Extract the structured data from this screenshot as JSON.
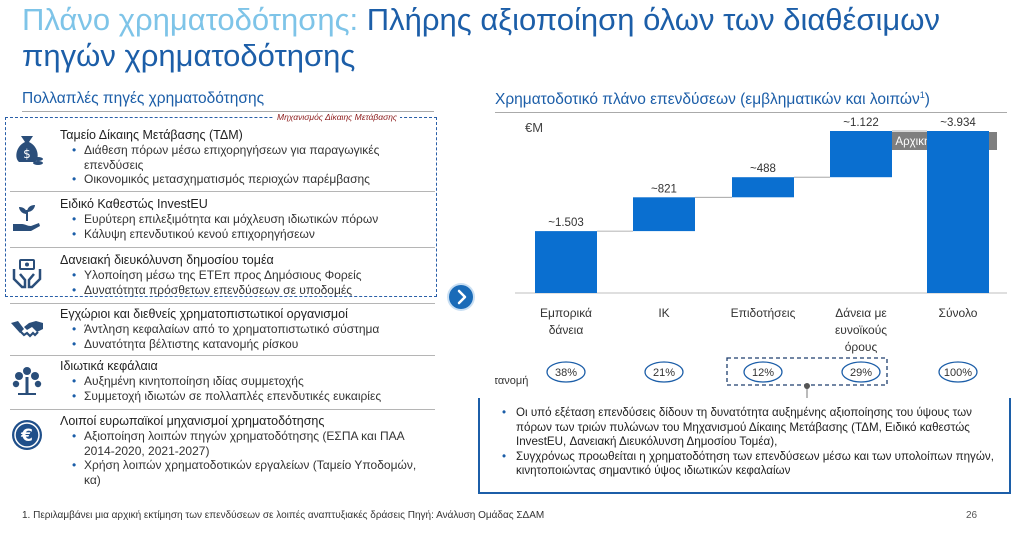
{
  "header": {
    "title_accent": "Πλάνο χρηματοδότησης:",
    "title_rest": " Πλήρης αξιοποίηση όλων των διαθέσιμων πηγών χρηματοδότησης"
  },
  "left": {
    "heading": "Πολλαπλές πηγές χρηματοδότησης",
    "mechanism_label": "Μηχανισμός Δίκαιης Μετάβασης",
    "items": [
      {
        "icon": "money-bag-icon",
        "title": "Ταμείο Δίκαιης Μετάβασης (ΤΔΜ)",
        "bullets": [
          "Διάθεση πόρων μέσω επιχορηγήσεων για παραγωγικές επενδύσεις",
          "Οικονομικός μετασχηματισμός περιοχών παρέμβασης"
        ]
      },
      {
        "icon": "hand-plant-icon",
        "title": "Ειδικό Καθεστώς InvestEU",
        "bullets": [
          "Ευρύτερη επιλεξιμότητα και μόχλευση ιδιωτικών πόρων",
          "Κάλυψη επενδυτικού κενού επιχορηγήσεων"
        ]
      },
      {
        "icon": "hands-money-icon",
        "title": "Δανειακή διευκόλυνση δημοσίου τομέα",
        "bullets": [
          "Υλοποίηση μέσω της ΕΤΕπ προς Δημόσιους Φορείς",
          "Δυνατότητα πρόσθετων επενδύσεων σε υποδομές"
        ]
      },
      {
        "icon": "handshake-icon",
        "title": "Εγχώριοι και διεθνείς χρηματοπιστωτικοί οργανισμοί",
        "bullets": [
          "Άντληση κεφαλαίων από το χρηματοπιστωτικό σύστημα",
          "Δυνατότητα βέλτιστης κατανομής ρίσκου"
        ]
      },
      {
        "icon": "tree-icon",
        "title": "Ιδιωτικά κεφάλαια",
        "bullets": [
          "Αυξημένη κινητοποίηση ιδίας συμμετοχής",
          "Συμμετοχή ιδιωτών σε πολλαπλές επενδυτικές ευκαιρίες"
        ]
      },
      {
        "icon": "euro-icon",
        "title": "Λοιποί ευρωπαϊκοί μηχανισμοί χρηματοδότησης",
        "bullets": [
          "Αξιοποίηση λοιπών πηγών χρηματοδότησης (ΕΣΠΑ και ΠΑΑ 2014-2020, 2021-2027)",
          "Χρήση λοιπών χρηματοδοτικών εργαλείων (Ταμείο Υποδομών, κα)"
        ]
      }
    ]
  },
  "right": {
    "heading": "Χρηματοδοτικό πλάνο επενδύσεων (εμβληματικών και λοιπών",
    "heading_sup": "1",
    "heading_end": ")"
  },
  "chart_data": {
    "type": "bar",
    "subtype": "waterfall",
    "unit": "€M",
    "tag": "Αρχική Εκτίμηση",
    "categories": [
      "Εμπορικά δάνεια",
      "ΙΚ",
      "Επιδοτήσεις",
      "Δάνεια με ευνοϊκούς όρους",
      "Σύνολο"
    ],
    "values": [
      1503,
      821,
      488,
      1122,
      3934
    ],
    "value_labels": [
      "~1.503",
      "~821",
      "~488",
      "~1.122",
      "~3.934"
    ],
    "allocation_label": "% κατανομή",
    "allocation": [
      "38%",
      "21%",
      "12%",
      "29%",
      "100%"
    ],
    "highlighted": [
      "Επιδοτήσεις",
      "Δάνεια με ευνοϊκούς όρους"
    ],
    "colors": {
      "bar": "#0a6fd0",
      "tag_bg": "#7f7f7f",
      "circle": "#1c5ea8",
      "dashed": "#1e3f6e"
    }
  },
  "info": {
    "bullets": [
      "Οι υπό εξέταση επενδύσεις δίδουν τη δυνατότητα αυξημένης αξιοποίησης του ύψους των πόρων των τριών πυλώνων του Μηχανισμού Δίκαιης Μετάβασης (ΤΔΜ, Ειδικό καθεστώς InvestEU, Δανειακή Διευκόλυνση Δημοσίου Τομέα),",
      "Συγχρόνως προωθείται η χρηματοδότηση των επενδύσεων μέσω και των υπολοίπων πηγών, κινητοποιώντας σημαντικό ύψος ιδιωτικών κεφαλαίων"
    ]
  },
  "footer": {
    "note": "1. Περιλαμβάνει μια αρχική εκτίμηση των επενδύσεων σε λοιπές αναπτυξιακές δράσεις Πηγή: Ανάλυση Ομάδας ΣΔΑΜ",
    "page": "26"
  }
}
